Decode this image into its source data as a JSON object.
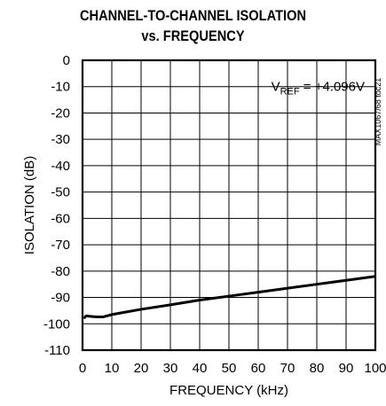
{
  "chart_data": {
    "type": "line",
    "title_line1": "CHANNEL-TO-CHANNEL ISOLATION",
    "title_line2": "vs. FREQUENCY",
    "xlabel": "FREQUENCY (kHz)",
    "ylabel": "ISOLATION (dB)",
    "xlim": [
      0,
      100
    ],
    "ylim": [
      -110,
      0
    ],
    "x_ticks": [
      0,
      10,
      20,
      30,
      40,
      50,
      60,
      70,
      80,
      90,
      100
    ],
    "y_ticks": [
      0,
      -10,
      -20,
      -30,
      -40,
      -50,
      -60,
      -70,
      -80,
      -90,
      -100,
      -110
    ],
    "grid": true,
    "annotation": {
      "main": "V",
      "sub": "REF",
      "rest": " = +4.096V"
    },
    "side_note": "MAX1067/68 toc21",
    "series": [
      {
        "x": [
          0.5,
          1,
          1.5,
          2,
          3,
          5,
          7,
          10,
          15,
          20,
          30,
          40,
          50,
          60,
          70,
          80,
          90,
          100
        ],
        "values": [
          -98,
          -97.2,
          -97,
          -97.1,
          -97.2,
          -97.4,
          -97.4,
          -96.5,
          -95.5,
          -94.5,
          -92.8,
          -91,
          -89.5,
          -88,
          -86.5,
          -85,
          -83.5,
          -82
        ]
      }
    ]
  }
}
